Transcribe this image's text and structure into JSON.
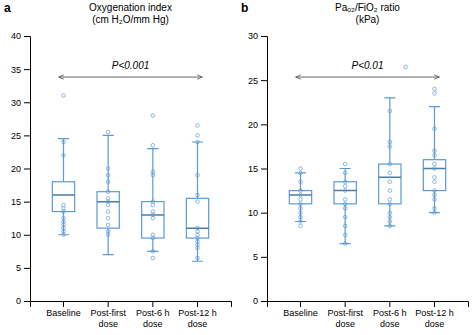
{
  "chart_data": [
    {
      "type": "box",
      "panel_label": "a",
      "title": "Oxygenation index\n(cm H₂O/mm Hg)",
      "annotation": "P<0.001",
      "categories": [
        "Baseline",
        "Post-first\ndose",
        "Post-6 h\ndose",
        "Post-12 h\ndose"
      ],
      "boxes": [
        {
          "q1": 13.5,
          "median": 16.0,
          "q3": 18.0,
          "whislo": 10.0,
          "whishi": 24.5,
          "fliers": [
            31.0,
            24.0,
            22.0,
            14.5,
            14.0,
            13.5,
            12.5,
            12.0,
            11.5,
            11.0,
            10.5,
            10.0
          ]
        },
        {
          "q1": 11.0,
          "median": 15.0,
          "q3": 16.5,
          "whislo": 7.0,
          "whishi": 25.0,
          "fliers": [
            25.5,
            20.0,
            19.0,
            18.0,
            16.5,
            15.5,
            15.0,
            14.5,
            13.5,
            12.5,
            11.5,
            10.5,
            10.0
          ]
        },
        {
          "q1": 9.5,
          "median": 13.0,
          "q3": 15.0,
          "whislo": 7.5,
          "whishi": 23.0,
          "fliers": [
            28.0,
            23.5,
            19.5,
            19.0,
            15.0,
            14.5,
            13.5,
            13.0,
            12.5,
            10.0,
            9.5,
            7.5,
            6.5
          ]
        },
        {
          "q1": 9.5,
          "median": 11.0,
          "q3": 15.5,
          "whislo": 6.0,
          "whishi": 24.0,
          "fliers": [
            26.5,
            25.0,
            24.0,
            19.0,
            16.0,
            15.0,
            11.0,
            10.5,
            10.0,
            9.5,
            9.0,
            8.5,
            8.0,
            6.5
          ]
        }
      ],
      "color": "#5B9BD5",
      "ylim": [
        0,
        40
      ],
      "yticks": [
        0,
        5,
        10,
        15,
        20,
        25,
        30,
        35,
        40
      ],
      "grid": false
    },
    {
      "type": "box",
      "panel_label": "b",
      "title": "Paₒ₂/FiO₂ ratio\n(kPa)",
      "annotation": "P<0.01",
      "categories": [
        "Baseline",
        "Post-first\ndose",
        "Post-6 h\ndose",
        "Post-12 h\ndose"
      ],
      "boxes": [
        {
          "q1": 11.0,
          "median": 12.0,
          "q3": 12.5,
          "whislo": 9.0,
          "whishi": 14.5,
          "fliers": [
            15.0,
            14.5,
            13.5,
            12.5,
            12.0,
            11.5,
            11.0,
            10.5,
            10.0,
            9.5,
            9.0,
            8.5
          ]
        },
        {
          "q1": 11.0,
          "median": 12.5,
          "q3": 13.5,
          "whislo": 6.5,
          "whishi": 15.0,
          "fliers": [
            15.5,
            14.5,
            13.5,
            13.0,
            12.5,
            11.5,
            11.0,
            10.5,
            9.5,
            8.5,
            7.5,
            6.5
          ]
        },
        {
          "q1": 11.0,
          "median": 14.0,
          "q3": 15.5,
          "whislo": 8.5,
          "whishi": 23.0,
          "fliers": [
            21.5,
            18.0,
            17.5,
            15.5,
            14.5,
            13.5,
            12.5,
            11.5,
            11.0,
            10.0,
            9.5,
            9.0,
            8.5
          ]
        },
        {
          "q1": 12.5,
          "median": 15.0,
          "q3": 16.0,
          "whislo": 10.0,
          "whishi": 22.0,
          "fliers": [
            24.0,
            23.5,
            19.5,
            17.0,
            16.5,
            15.5,
            15.0,
            14.0,
            13.5,
            12.5,
            12.0,
            11.5,
            10.5,
            10.0
          ]
        }
      ],
      "pvalue_flier": 26.5,
      "color": "#5B9BD5",
      "ylim": [
        0,
        30
      ],
      "yticks": [
        0,
        5,
        10,
        15,
        20,
        25,
        30
      ],
      "grid": false
    }
  ]
}
